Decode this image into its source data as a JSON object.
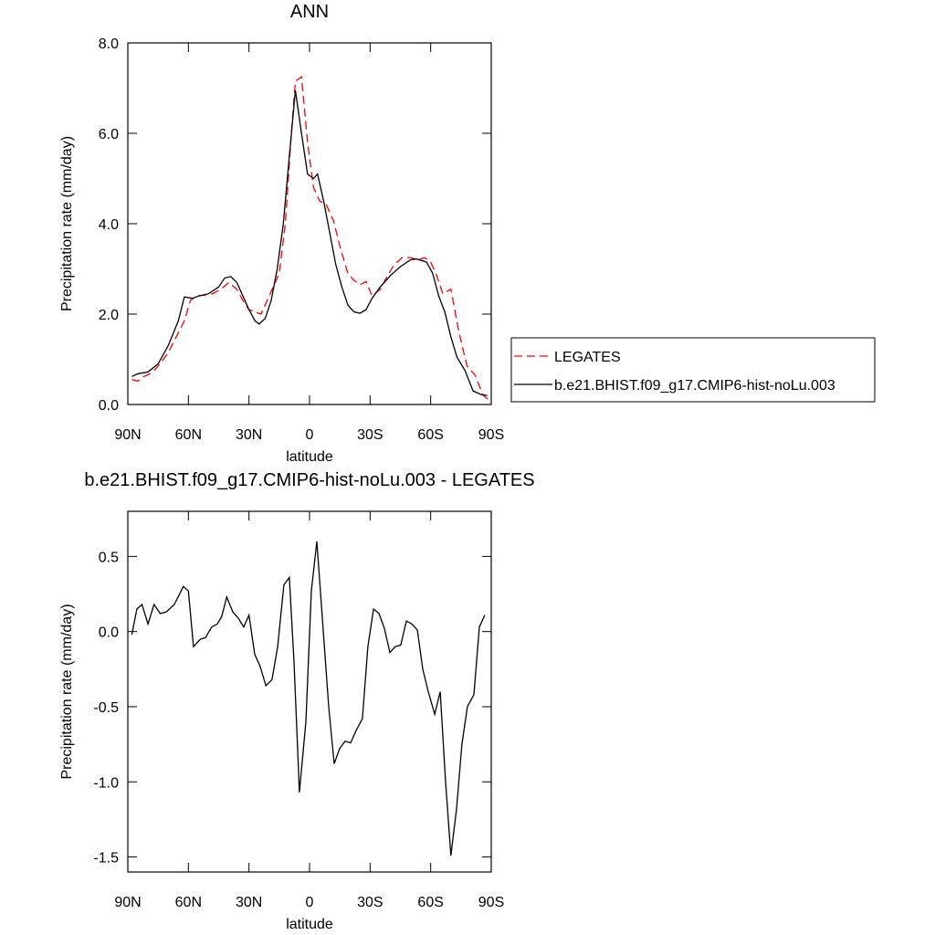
{
  "chart_data": [
    {
      "type": "line",
      "title": "ANN",
      "xlabel": "latitude",
      "ylabel": "Precipitation rate (mm/day)",
      "xlim": [
        90,
        -90
      ],
      "xticks": [
        {
          "value": 90,
          "label": "90N"
        },
        {
          "value": 60,
          "label": "60N"
        },
        {
          "value": 30,
          "label": "30N"
        },
        0,
        {
          "value": -30,
          "label": "30S"
        },
        {
          "value": -60,
          "label": "60S"
        },
        {
          "value": -90,
          "label": "90S"
        }
      ],
      "ylim": [
        0,
        8
      ],
      "yticks": [
        {
          "value": 0,
          "label": "0.0"
        },
        {
          "value": 2,
          "label": "2.0"
        },
        {
          "value": 4,
          "label": "4.0"
        },
        {
          "value": 6,
          "label": "6.0"
        },
        {
          "value": 8,
          "label": "8.0"
        }
      ],
      "legend": "outside-right",
      "series": [
        {
          "name": "LEGATES",
          "color": "#ff0000",
          "style": "dashed",
          "x": [
            88,
            85,
            82,
            78,
            74,
            70,
            66,
            62,
            59,
            56,
            52,
            48,
            44,
            40,
            36,
            33,
            30,
            27,
            24,
            21,
            18,
            15,
            12,
            9,
            7,
            4,
            1,
            -2,
            -5,
            -8,
            -12,
            -15,
            -19,
            -22,
            -25,
            -28,
            -31,
            -35,
            -38,
            -42,
            -46,
            -50,
            -54,
            -57,
            -60,
            -63,
            -66,
            -70,
            -74,
            -78,
            -82,
            -86,
            -89
          ],
          "values": [
            0.55,
            0.52,
            0.62,
            0.7,
            0.9,
            1.15,
            1.5,
            1.85,
            2.3,
            2.4,
            2.42,
            2.45,
            2.55,
            2.7,
            2.55,
            2.3,
            2.1,
            2.05,
            2.0,
            2.3,
            2.6,
            2.9,
            4.0,
            6.0,
            7.15,
            7.25,
            5.8,
            4.8,
            4.5,
            4.45,
            4.05,
            3.5,
            2.9,
            2.75,
            2.65,
            2.72,
            2.4,
            2.55,
            2.8,
            3.1,
            3.25,
            3.25,
            3.2,
            3.25,
            3.15,
            2.85,
            2.45,
            2.55,
            1.6,
            0.85,
            0.65,
            0.2,
            0.1
          ]
        },
        {
          "name": "b.e21.BHIST.f09_g17.CMIP6-hist-noLu.003",
          "color": "#000000",
          "style": "solid",
          "x": [
            88,
            85,
            80,
            75,
            70,
            65,
            62,
            58,
            55,
            50,
            45,
            42,
            39,
            36,
            33,
            30,
            27,
            25,
            22,
            19,
            16,
            13,
            10,
            7,
            4,
            1,
            -2,
            -4,
            -7,
            -10,
            -13,
            -16,
            -19,
            -22,
            -25,
            -28,
            -31,
            -35,
            -40,
            -45,
            -50,
            -53,
            -58,
            -61,
            -64,
            -67,
            -70,
            -73,
            -77,
            -81,
            -85,
            -88
          ],
          "values": [
            0.62,
            0.68,
            0.72,
            0.9,
            1.3,
            1.85,
            2.38,
            2.35,
            2.4,
            2.45,
            2.6,
            2.8,
            2.83,
            2.7,
            2.4,
            2.1,
            1.85,
            1.78,
            1.9,
            2.3,
            3.0,
            4.0,
            5.5,
            6.95,
            6.0,
            5.1,
            5.0,
            5.1,
            4.5,
            3.8,
            3.1,
            2.6,
            2.2,
            2.05,
            2.02,
            2.1,
            2.35,
            2.6,
            2.85,
            3.05,
            3.2,
            3.22,
            3.15,
            2.9,
            2.4,
            2.05,
            1.5,
            1.05,
            0.75,
            0.3,
            0.22,
            0.2
          ]
        }
      ]
    },
    {
      "type": "line",
      "title": "b.e21.BHIST.f09_g17.CMIP6-hist-noLu.003 - LEGATES",
      "xlabel": "latitude",
      "ylabel": "Precipitation rate (mm/day)",
      "xlim": [
        90,
        -90
      ],
      "xticks": [
        {
          "value": 90,
          "label": "90N"
        },
        {
          "value": 60,
          "label": "60N"
        },
        {
          "value": 30,
          "label": "30N"
        },
        0,
        {
          "value": -30,
          "label": "30S"
        },
        {
          "value": -60,
          "label": "60S"
        },
        {
          "value": -90,
          "label": "90S"
        }
      ],
      "ylim": [
        -1.6,
        0.8
      ],
      "yticks": [
        0.5,
        {
          "value": 0,
          "label": "0.0"
        },
        -0.5,
        {
          "value": -1,
          "label": "-1.0"
        },
        -1.5
      ],
      "series": [
        {
          "color": "#000000",
          "style": "solid",
          "x": [
            88,
            85.5,
            83,
            80,
            77,
            74,
            71,
            67,
            64,
            62.5,
            60,
            57.5,
            54,
            51.5,
            48.5,
            45.7,
            43.5,
            41,
            38,
            35.3,
            32.6,
            30,
            27.2,
            24.5,
            21.6,
            18.6,
            15.8,
            12.7,
            10,
            7.7,
            5,
            1.8,
            -0.9,
            -3.6,
            -6.3,
            -9.5,
            -12.2,
            -14.9,
            -17.6,
            -20.4,
            -23,
            -26.2,
            -28.9,
            -31.7,
            -34.4,
            -37.1,
            -39.8,
            -42.5,
            -45.2,
            -48,
            -50.7,
            -53.4,
            -56.1,
            -58.8,
            -62,
            -64.7,
            -67.4,
            -70,
            -72.8,
            -75.5,
            -78.2,
            -81.4,
            -84.1,
            -86.8
          ],
          "values": [
            -0.02,
            0.15,
            0.18,
            0.05,
            0.18,
            0.12,
            0.13,
            0.18,
            0.26,
            0.3,
            0.27,
            -0.1,
            -0.05,
            -0.04,
            0.03,
            0.05,
            0.1,
            0.23,
            0.13,
            0.09,
            0.03,
            0.11,
            -0.15,
            -0.23,
            -0.36,
            -0.32,
            -0.1,
            0.31,
            0.36,
            -0.2,
            -1.07,
            -0.6,
            0.27,
            0.6,
            0.1,
            -0.5,
            -0.88,
            -0.78,
            -0.73,
            -0.74,
            -0.66,
            -0.58,
            -0.1,
            0.15,
            0.12,
            0.02,
            -0.14,
            -0.1,
            -0.09,
            0.07,
            0.05,
            0.01,
            -0.25,
            -0.4,
            -0.55,
            -0.4,
            -1.0,
            -1.49,
            -1.18,
            -0.75,
            -0.5,
            -0.42,
            0.03,
            0.11
          ]
        }
      ]
    }
  ]
}
